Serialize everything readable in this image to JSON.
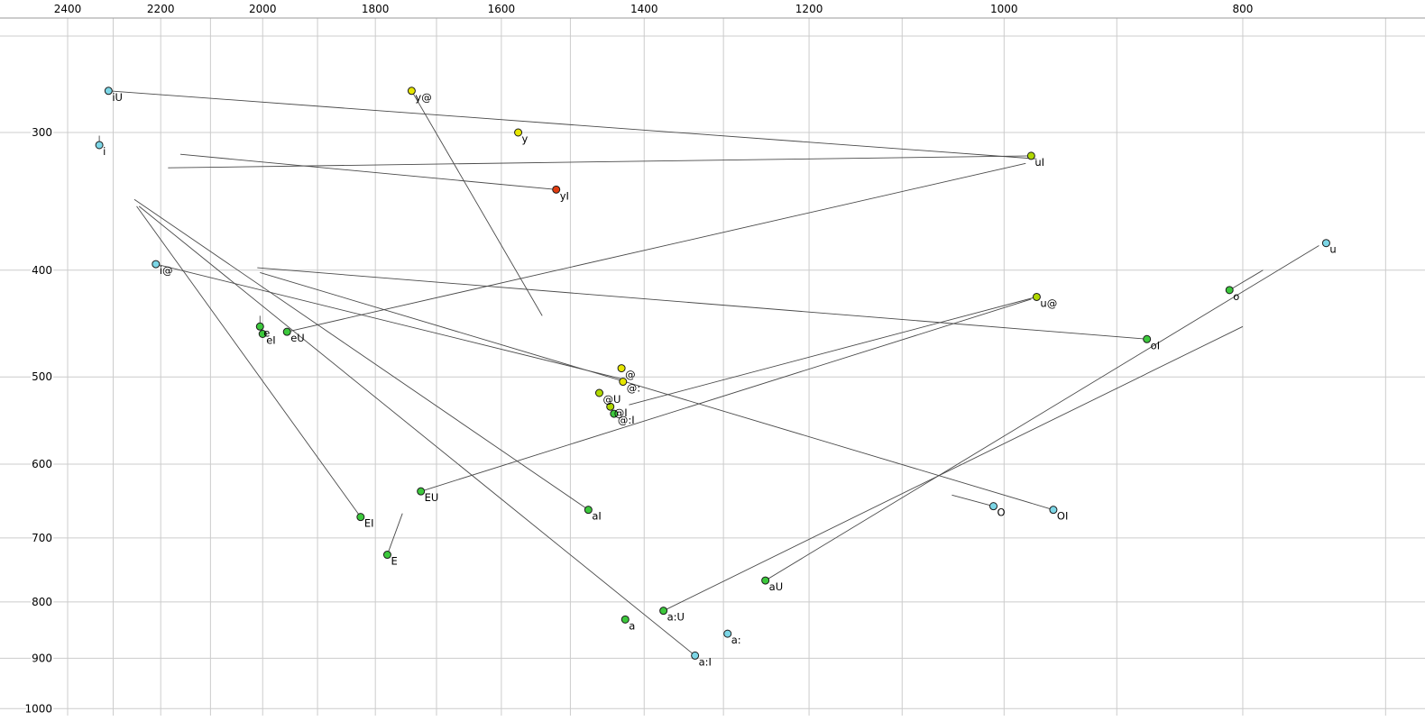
{
  "chart_data": {
    "type": "scatter",
    "title": "",
    "xlabel": "",
    "ylabel": "",
    "axes": {
      "x_scale": "log",
      "x_reversed": true,
      "y_scale": "log",
      "y_inverted": true,
      "x_ticks": [
        2400,
        2200,
        2000,
        1800,
        1600,
        1400,
        1200,
        1000,
        800
      ],
      "y_ticks": [
        300,
        400,
        500,
        600,
        700,
        800,
        900,
        1000
      ],
      "grid": true
    },
    "grid": {
      "x_values": [
        2400,
        2300,
        2200,
        2100,
        2000,
        1900,
        1800,
        1700,
        1600,
        1500,
        1400,
        1300,
        1200,
        1100,
        1000,
        900,
        800,
        700
      ],
      "y_values": [
        300,
        400,
        500,
        600,
        700,
        800,
        900,
        1000
      ]
    },
    "colors": {
      "background": "#ffffff",
      "gridline": "#cccccc",
      "axis_line": "#999999",
      "trajectory": "#4a4a4a",
      "point_stroke": "#1b1b1b",
      "label": "#000000",
      "palette": {
        "cyan": "#7cd6e6",
        "green": "#3cc83c",
        "yellow": "#e6e600",
        "yellowgreen": "#b0d800",
        "red": "#e03c10"
      }
    },
    "points": [
      {
        "label": "iU",
        "f2": 2310,
        "f1": 275,
        "color": "cyan"
      },
      {
        "label": "i",
        "f2": 2330,
        "f1": 308,
        "color": "cyan"
      },
      {
        "label": "y@",
        "f2": 1740,
        "f1": 275,
        "color": "yellow"
      },
      {
        "label": "y",
        "f2": 1575,
        "f1": 300,
        "color": "yellow"
      },
      {
        "label": "uI",
        "f2": 975,
        "f1": 315,
        "color": "yellowgreen"
      },
      {
        "label": "yI",
        "f2": 1520,
        "f1": 338,
        "color": "red"
      },
      {
        "label": "i@",
        "f2": 2210,
        "f1": 395,
        "color": "cyan"
      },
      {
        "label": "u",
        "f2": 740,
        "f1": 378,
        "color": "cyan"
      },
      {
        "label": "o",
        "f2": 810,
        "f1": 417,
        "color": "green"
      },
      {
        "label": "u@",
        "f2": 970,
        "f1": 423,
        "color": "yellowgreen"
      },
      {
        "label": "oI",
        "f2": 875,
        "f1": 462,
        "color": "green"
      },
      {
        "label": "e",
        "f2": 2005,
        "f1": 450,
        "color": "green"
      },
      {
        "label": "eI",
        "f2": 2000,
        "f1": 457,
        "color": "green"
      },
      {
        "label": "eU",
        "f2": 1955,
        "f1": 455,
        "color": "green"
      },
      {
        "label": "@",
        "f2": 1430,
        "f1": 491,
        "color": "yellow"
      },
      {
        "label": "@:",
        "f2": 1428,
        "f1": 505,
        "color": "yellow"
      },
      {
        "label": "@U",
        "f2": 1460,
        "f1": 517,
        "color": "yellowgreen"
      },
      {
        "label": "@I",
        "f2": 1445,
        "f1": 532,
        "color": "yellowgreen"
      },
      {
        "label": "@:I",
        "f2": 1440,
        "f1": 540,
        "color": "green"
      },
      {
        "label": "EU",
        "f2": 1725,
        "f1": 635,
        "color": "green"
      },
      {
        "label": "aI",
        "f2": 1475,
        "f1": 660,
        "color": "green"
      },
      {
        "label": "EI",
        "f2": 1825,
        "f1": 670,
        "color": "green"
      },
      {
        "label": "E",
        "f2": 1780,
        "f1": 725,
        "color": "green"
      },
      {
        "label": "O",
        "f2": 1010,
        "f1": 655,
        "color": "cyan"
      },
      {
        "label": "OI",
        "f2": 955,
        "f1": 660,
        "color": "cyan"
      },
      {
        "label": "aU",
        "f2": 1250,
        "f1": 765,
        "color": "green"
      },
      {
        "label": "a:U",
        "f2": 1375,
        "f1": 815,
        "color": "green"
      },
      {
        "label": "a",
        "f2": 1425,
        "f1": 830,
        "color": "green"
      },
      {
        "label": "a:",
        "f2": 1295,
        "f1": 855,
        "color": "cyan"
      },
      {
        "label": "a:I",
        "f2": 1335,
        "f1": 895,
        "color": "cyan"
      }
    ],
    "segments": [
      {
        "label": "iU",
        "from": [
          2310,
          275
        ],
        "to": [
          970,
          317
        ]
      },
      {
        "label": "uI",
        "from": [
          975,
          315
        ],
        "to": [
          2185,
          323
        ]
      },
      {
        "label": "y@",
        "from": [
          1740,
          275
        ],
        "to": [
          1540,
          440
        ]
      },
      {
        "label": "yI",
        "from": [
          1520,
          338
        ],
        "to": [
          2160,
          314
        ]
      },
      {
        "label": "i@",
        "from": [
          2210,
          395
        ],
        "to": [
          1430,
          502
        ]
      },
      {
        "label": "u@",
        "from": [
          970,
          423
        ],
        "to": [
          1420,
          530
        ]
      },
      {
        "label": "eU",
        "from": [
          1955,
          455
        ],
        "to": [
          980,
          320
        ]
      },
      {
        "label": "e",
        "from": [
          2005,
          450
        ],
        "to": [
          2005,
          440
        ]
      },
      {
        "label": "i",
        "from": [
          2330,
          308
        ],
        "to": [
          2330,
          302
        ]
      },
      {
        "label": "EU",
        "from": [
          1725,
          635
        ],
        "to": [
          975,
          425
        ]
      },
      {
        "label": "EI",
        "from": [
          1825,
          670
        ],
        "to": [
          2250,
          350
        ]
      },
      {
        "label": "E",
        "from": [
          1780,
          725
        ],
        "to": [
          1755,
          665
        ]
      },
      {
        "label": "aI",
        "from": [
          1475,
          660
        ],
        "to": [
          2255,
          345
        ]
      },
      {
        "label": "a:I",
        "from": [
          1335,
          895
        ],
        "to": [
          2245,
          350
        ]
      },
      {
        "label": "aU",
        "from": [
          1250,
          765
        ],
        "to": [
          745,
          380
        ]
      },
      {
        "label": "a:U",
        "from": [
          1375,
          815
        ],
        "to": [
          800,
          450
        ]
      },
      {
        "label": "oI",
        "from": [
          875,
          462
        ],
        "to": [
          2010,
          398
        ]
      },
      {
        "label": "OI",
        "from": [
          955,
          660
        ],
        "to": [
          2005,
          402
        ]
      },
      {
        "label": "O",
        "from": [
          1010,
          655
        ],
        "to": [
          1050,
          640
        ]
      },
      {
        "label": "o",
        "from": [
          810,
          417
        ],
        "to": [
          785,
          400
        ]
      }
    ]
  }
}
